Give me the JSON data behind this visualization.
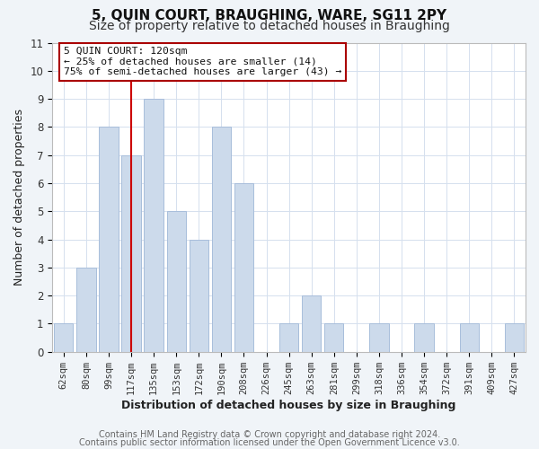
{
  "title": "5, QUIN COURT, BRAUGHING, WARE, SG11 2PY",
  "subtitle": "Size of property relative to detached houses in Braughing",
  "xlabel": "Distribution of detached houses by size in Braughing",
  "ylabel": "Number of detached properties",
  "bar_values": [
    1,
    3,
    8,
    7,
    9,
    5,
    4,
    8,
    6,
    0,
    1,
    2,
    1,
    0,
    1,
    0,
    1,
    0,
    1,
    0,
    1
  ],
  "bar_labels": [
    "62sqm",
    "80sqm",
    "99sqm",
    "117sqm",
    "135sqm",
    "153sqm",
    "172sqm",
    "190sqm",
    "208sqm",
    "226sqm",
    "245sqm",
    "263sqm",
    "281sqm",
    "299sqm",
    "318sqm",
    "336sqm",
    "354sqm",
    "372sqm",
    "391sqm",
    "409sqm",
    "427sqm"
  ],
  "bar_color": "#ccdaeb",
  "bar_edge_color": "#a8bedb",
  "grid_color": "#d5e0ee",
  "red_line_index": 3,
  "red_line_color": "#cc0000",
  "ylim": [
    0,
    11
  ],
  "yticks": [
    0,
    1,
    2,
    3,
    4,
    5,
    6,
    7,
    8,
    9,
    10,
    11
  ],
  "annotation_line1": "5 QUIN COURT: 120sqm",
  "annotation_line2": "← 25% of detached houses are smaller (14)",
  "annotation_line3": "75% of semi-detached houses are larger (43) →",
  "annotation_box_color": "#ffffff",
  "annotation_box_edge_color": "#aa0000",
  "footer_line1": "Contains HM Land Registry data © Crown copyright and database right 2024.",
  "footer_line2": "Contains public sector information licensed under the Open Government Licence v3.0.",
  "background_color": "#f0f4f8",
  "plot_background_color": "#ffffff",
  "title_fontsize": 11,
  "subtitle_fontsize": 10,
  "tick_fontsize": 7.5,
  "axis_label_fontsize": 9,
  "footer_fontsize": 7
}
